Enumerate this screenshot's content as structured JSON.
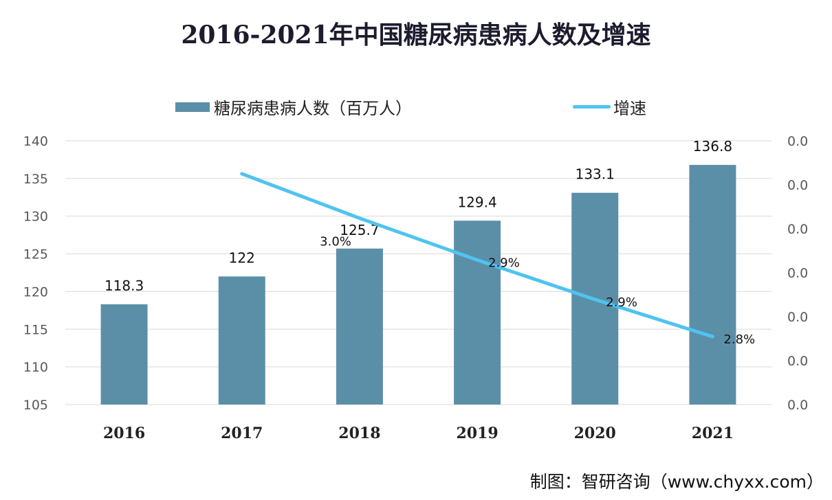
{
  "chart_data": {
    "type": "bar+line",
    "title": "2016-2021年中国糖尿病患病人数及增速",
    "categories": [
      "2016",
      "2017",
      "2018",
      "2019",
      "2020",
      "2021"
    ],
    "series": [
      {
        "name": "糖尿病患病人数（百万人）",
        "type": "bar",
        "axis": "left",
        "color": "#5b8fa8",
        "values": [
          118.3,
          122,
          125.7,
          129.4,
          133.1,
          136.8
        ],
        "labels": [
          "118.3",
          "122",
          "125.7",
          "129.4",
          "133.1",
          "136.8"
        ]
      },
      {
        "name": "增速",
        "type": "line",
        "axis": "right",
        "color": "#4fc3f0",
        "values": [
          null,
          3.1,
          3.0,
          2.9,
          2.9,
          2.8
        ],
        "labels": [
          null,
          null,
          "3.0%",
          "2.9%",
          "2.9%",
          "2.8%"
        ]
      }
    ],
    "left_axis": {
      "ylim": [
        105,
        140
      ],
      "ticks": [
        "105",
        "110",
        "115",
        "120",
        "125",
        "130",
        "135",
        "140"
      ]
    },
    "right_axis": {
      "ticks": [
        "0.0",
        "0.0",
        "0.0",
        "0.0",
        "0.0",
        "0.0",
        "0.0"
      ]
    },
    "grid": true,
    "legend": "top"
  },
  "source": "制图：智研咨询（www.chyxx.com）"
}
